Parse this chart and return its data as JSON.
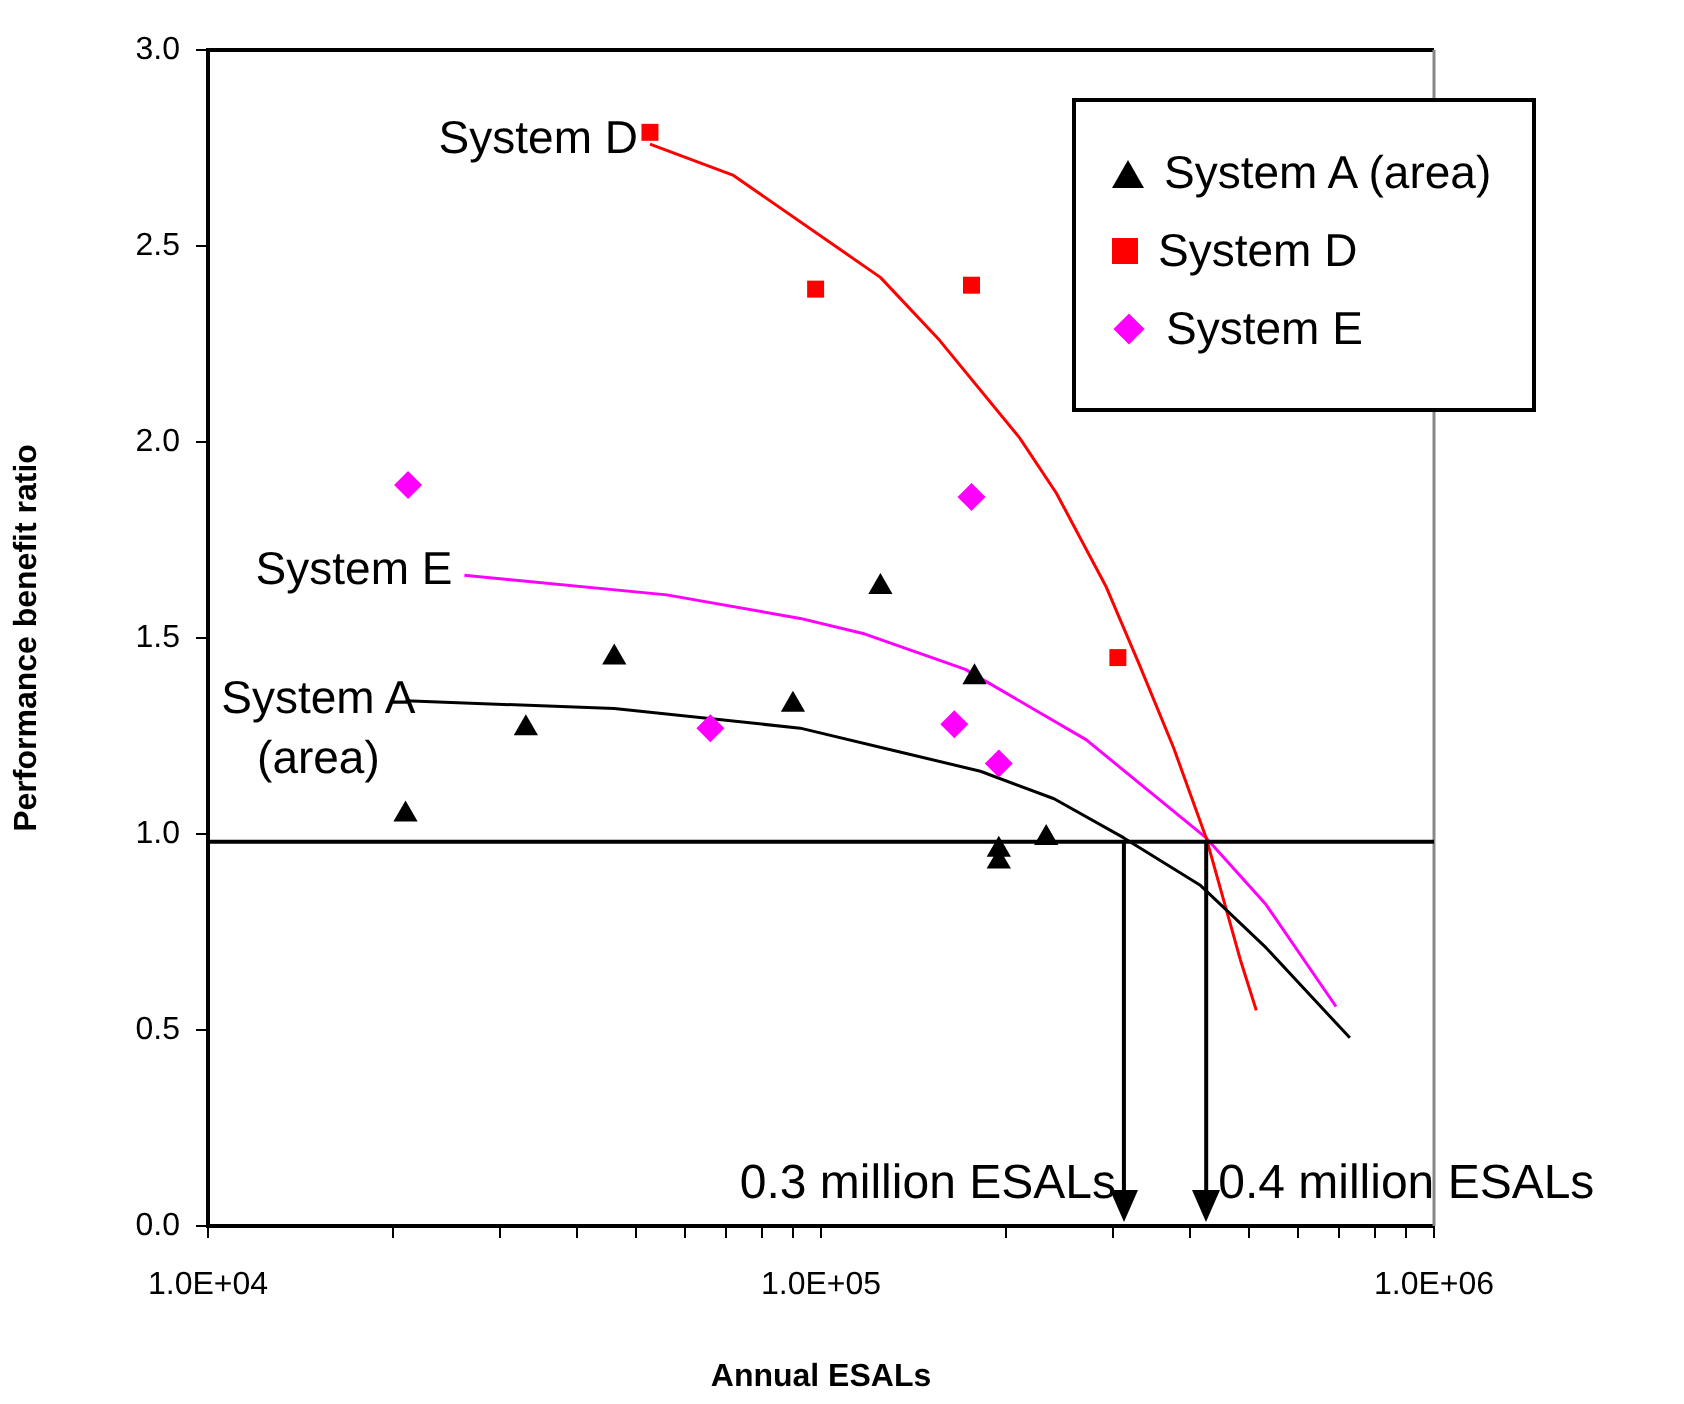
{
  "chart_data": {
    "type": "scatter",
    "xlabel": "Annual ESALs",
    "ylabel": "Performance benefit ratio",
    "log": "x",
    "xlim": [
      10000,
      1000000
    ],
    "xticks": [
      {
        "value": 10000,
        "label": "1.0E+04"
      },
      {
        "value": 20000,
        "label": null
      },
      {
        "value": 30000,
        "label": null
      },
      {
        "value": 40000,
        "label": null
      },
      {
        "value": 50000,
        "label": null
      },
      {
        "value": 60000,
        "label": null
      },
      {
        "value": 70000,
        "label": null
      },
      {
        "value": 80000,
        "label": null
      },
      {
        "value": 90000,
        "label": null
      },
      {
        "value": 100000,
        "label": "1.0E+05"
      },
      {
        "value": 200000,
        "label": null
      },
      {
        "value": 300000,
        "label": null
      },
      {
        "value": 400000,
        "label": null
      },
      {
        "value": 500000,
        "label": null
      },
      {
        "value": 600000,
        "label": null
      },
      {
        "value": 700000,
        "label": null
      },
      {
        "value": 800000,
        "label": null
      },
      {
        "value": 900000,
        "label": null
      },
      {
        "value": 1000000,
        "label": "1.0E+06"
      }
    ],
    "ylim": [
      0,
      3
    ],
    "yticks": [
      {
        "value": 0,
        "label": "0.0"
      },
      {
        "value": 0.5,
        "label": "0.5"
      },
      {
        "value": 1,
        "label": "1.0"
      },
      {
        "value": 1.5,
        "label": "1.5"
      },
      {
        "value": 2,
        "label": "2.0"
      },
      {
        "value": 2.5,
        "label": "2.5"
      },
      {
        "value": 3,
        "label": "3.0"
      }
    ],
    "grid": false,
    "legend": "top right",
    "series": [
      {
        "name": "System A (area)",
        "color": "#000000",
        "marker": "triangle",
        "x": [
          21000,
          33000,
          46000,
          90000,
          125000,
          178000,
          195000,
          195000,
          233000
        ],
        "values": [
          1.05,
          1.27,
          1.45,
          1.33,
          1.63,
          1.4,
          0.96,
          0.93,
          0.99
        ]
      },
      {
        "name": "System D",
        "color": "#ff0000",
        "marker": "square",
        "x": [
          52600,
          98000,
          176000,
          305000
        ],
        "values": [
          2.79,
          2.39,
          2.4,
          1.45
        ]
      },
      {
        "name": "System E",
        "color": "#ff00ff",
        "marker": "diamond",
        "x": [
          21200,
          66000,
          165000,
          176000,
          195000
        ],
        "values": [
          1.89,
          1.27,
          1.28,
          1.86,
          1.18
        ]
      },
      {
        "type": "line",
        "color": "#000000",
        "marker": "none",
        "x": [
          21000,
          46000,
          92500,
          134000,
          182000,
          240000,
          312000,
          415000,
          532000,
          729000
        ],
        "values": [
          1.34,
          1.32,
          1.27,
          1.21,
          1.16,
          1.09,
          0.99,
          0.87,
          0.71,
          0.48
        ]
      },
      {
        "type": "line",
        "color": "#ff0000",
        "marker": "none",
        "x": [
          52600,
          72000,
          110000,
          125000,
          156000,
          211000,
          242000,
          292000,
          331000,
          376000,
          425000,
          483000,
          513000
        ],
        "values": [
          2.76,
          2.68,
          2.48,
          2.42,
          2.26,
          2.01,
          1.87,
          1.63,
          1.43,
          1.22,
          0.99,
          0.68,
          0.55
        ]
      },
      {
        "type": "line",
        "color": "#ff00ff",
        "marker": "none",
        "x": [
          26200,
          56000,
          92500,
          118000,
          172000,
          271000,
          425000,
          532000,
          692000
        ],
        "values": [
          1.66,
          1.61,
          1.55,
          1.51,
          1.42,
          1.24,
          0.99,
          0.82,
          0.56
        ]
      }
    ],
    "ref_lines": [
      {
        "axis": "y",
        "value": 0.98,
        "color": "#000000"
      },
      {
        "axis": "x",
        "value": 312000,
        "label": "0.3 million ESALs",
        "color": "#000000"
      },
      {
        "axis": "x",
        "value": 425000,
        "label": "0.4 million ESALs",
        "color": "#000000"
      }
    ],
    "annotations": [
      {
        "text": "System D",
        "x": 52600,
        "y": 2.76
      },
      {
        "text": "System E",
        "x": 26200,
        "y": 1.66
      },
      {
        "text": "System A\n(area)",
        "x": 21000,
        "y": 1.34
      }
    ]
  }
}
